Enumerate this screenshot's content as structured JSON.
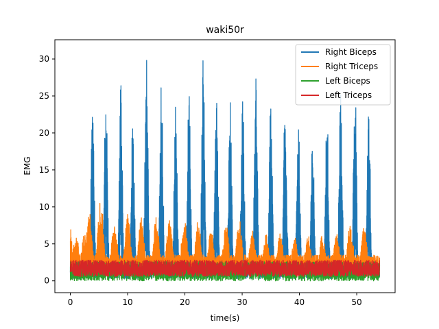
{
  "chart_data": {
    "type": "line",
    "title": "waki50r",
    "xlabel": "time(s)",
    "ylabel": "EMG",
    "xlim": [
      -2.7,
      56.7
    ],
    "ylim": [
      -1.6,
      32.6
    ],
    "xticks": [
      0,
      10,
      20,
      30,
      40,
      50
    ],
    "yticks": [
      0,
      5,
      10,
      15,
      20,
      25,
      30
    ],
    "grid": false,
    "legend_position": "top-right",
    "series": [
      {
        "name": "Right Biceps",
        "color": "#1f77b4",
        "baseline": [
          0.3,
          2.6
        ],
        "bursts": [
          {
            "t": 3.9,
            "peak": 25.7,
            "width": 0.45
          },
          {
            "t": 6.2,
            "peak": 27.3,
            "width": 0.45
          },
          {
            "t": 8.8,
            "peak": 28.0,
            "width": 0.45
          },
          {
            "t": 10.9,
            "peak": 23.1,
            "width": 0.45
          },
          {
            "t": 13.3,
            "peak": 30.9,
            "width": 0.45
          },
          {
            "t": 15.9,
            "peak": 27.7,
            "width": 0.45
          },
          {
            "t": 18.4,
            "peak": 24.9,
            "width": 0.45
          },
          {
            "t": 20.7,
            "peak": 27.7,
            "width": 0.45
          },
          {
            "t": 23.2,
            "peak": 31.0,
            "width": 0.45
          },
          {
            "t": 25.5,
            "peak": 26.8,
            "width": 0.45
          },
          {
            "t": 27.9,
            "peak": 25.2,
            "width": 0.45
          },
          {
            "t": 30.1,
            "peak": 24.7,
            "width": 0.45
          },
          {
            "t": 32.4,
            "peak": 27.7,
            "width": 0.45
          },
          {
            "t": 35.0,
            "peak": 24.9,
            "width": 0.45
          },
          {
            "t": 37.5,
            "peak": 25.1,
            "width": 0.45
          },
          {
            "t": 39.8,
            "peak": 22.6,
            "width": 0.45
          },
          {
            "t": 42.3,
            "peak": 20.1,
            "width": 0.45
          },
          {
            "t": 44.8,
            "peak": 24.1,
            "width": 0.45
          },
          {
            "t": 47.2,
            "peak": 26.7,
            "width": 0.45
          },
          {
            "t": 49.7,
            "peak": 27.3,
            "width": 0.45
          },
          {
            "t": 52.1,
            "peak": 24.6,
            "width": 0.45
          }
        ],
        "x_range": [
          0,
          54
        ]
      },
      {
        "name": "Right Triceps",
        "color": "#ff7f0e",
        "baseline": [
          1.0,
          3.5
        ],
        "bursts": [
          {
            "t": 0.1,
            "peak": 7.6,
            "width": 0.4
          },
          {
            "t": 1.0,
            "peak": 5.8,
            "width": 1.2
          },
          {
            "t": 2.4,
            "peak": 6.6,
            "width": 0.8
          },
          {
            "t": 3.3,
            "peak": 9.5,
            "width": 0.9
          },
          {
            "t": 5.3,
            "peak": 11.0,
            "width": 0.9
          },
          {
            "t": 7.7,
            "peak": 8.2,
            "width": 0.9
          },
          {
            "t": 10.0,
            "peak": 9.2,
            "width": 0.9
          },
          {
            "t": 12.4,
            "peak": 8.6,
            "width": 0.9
          },
          {
            "t": 15.0,
            "peak": 8.6,
            "width": 0.9
          },
          {
            "t": 17.3,
            "peak": 8.4,
            "width": 0.9
          },
          {
            "t": 19.9,
            "peak": 8.4,
            "width": 0.9
          },
          {
            "t": 22.3,
            "peak": 8.3,
            "width": 0.9
          },
          {
            "t": 24.6,
            "peak": 7.0,
            "width": 0.9
          },
          {
            "t": 27.2,
            "peak": 7.7,
            "width": 0.9
          },
          {
            "t": 29.5,
            "peak": 8.3,
            "width": 0.9
          },
          {
            "t": 31.8,
            "peak": 7.0,
            "width": 0.9
          },
          {
            "t": 34.2,
            "peak": 6.3,
            "width": 0.9
          },
          {
            "t": 36.7,
            "peak": 6.8,
            "width": 0.9
          },
          {
            "t": 39.2,
            "peak": 6.1,
            "width": 0.9
          },
          {
            "t": 41.5,
            "peak": 6.4,
            "width": 0.9
          },
          {
            "t": 44.0,
            "peak": 6.3,
            "width": 0.9
          },
          {
            "t": 46.5,
            "peak": 6.3,
            "width": 0.9
          },
          {
            "t": 48.9,
            "peak": 7.9,
            "width": 0.9
          },
          {
            "t": 51.3,
            "peak": 7.4,
            "width": 0.9
          }
        ],
        "x_range": [
          0,
          54
        ]
      },
      {
        "name": "Left Biceps",
        "color": "#2ca02c",
        "baseline": [
          0.0,
          2.6
        ],
        "bursts": [],
        "x_range": [
          0,
          54
        ]
      },
      {
        "name": "Left Triceps",
        "color": "#d62728",
        "baseline": [
          0.6,
          2.8
        ],
        "bursts": [],
        "x_range": [
          0,
          54
        ]
      }
    ]
  }
}
